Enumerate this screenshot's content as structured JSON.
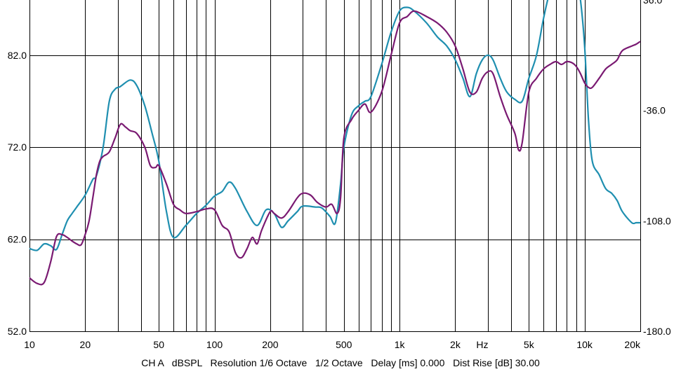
{
  "chart_data": {
    "type": "line",
    "x_scale": "log",
    "xlim": [
      10,
      20000
    ],
    "ylim_left": [
      52,
      88
    ],
    "ylim_right": [
      -180,
      36
    ],
    "grid": true,
    "x_tick_labels": [
      {
        "value": 10,
        "label": "10"
      },
      {
        "value": 20,
        "label": "20"
      },
      {
        "value": 50,
        "label": "50"
      },
      {
        "value": 100,
        "label": "100"
      },
      {
        "value": 200,
        "label": "200"
      },
      {
        "value": 500,
        "label": "500"
      },
      {
        "value": 1000,
        "label": "1k"
      },
      {
        "value": 2000,
        "label": "2k"
      },
      {
        "value": 5000,
        "label": "5k"
      },
      {
        "value": 10000,
        "label": "10k"
      },
      {
        "value": 20000,
        "label": "20k"
      }
    ],
    "x_unit_label": "Hz",
    "y_left_ticks": [
      {
        "value": 52,
        "label": "52.0"
      },
      {
        "value": 62,
        "label": "62.0"
      },
      {
        "value": 72,
        "label": "72.0"
      },
      {
        "value": 82,
        "label": "82.0"
      }
    ],
    "y_right_ticks": [
      {
        "value": -180,
        "label": "-180.0"
      },
      {
        "value": -108,
        "label": "-108.0"
      },
      {
        "value": -36,
        "label": "-36.0"
      },
      {
        "value": 36,
        "label": "36.0"
      }
    ],
    "series": [
      {
        "color": "#1f8fb0",
        "x": [
          10,
          11,
          12,
          13,
          14,
          15,
          16,
          17,
          18,
          20,
          22,
          23,
          25,
          27,
          29,
          31,
          35,
          38,
          42,
          46,
          50,
          55,
          60,
          70,
          80,
          90,
          100,
          110,
          120,
          130,
          150,
          170,
          190,
          210,
          230,
          250,
          280,
          300,
          350,
          380,
          420,
          450,
          480,
          500,
          550,
          600,
          650,
          700,
          800,
          900,
          1000,
          1100,
          1200,
          1400,
          1600,
          1800,
          2000,
          2200,
          2400,
          2600,
          2800,
          3000,
          3200,
          3500,
          3800,
          4200,
          4600,
          5000,
          5500,
          6000,
          6500,
          7000,
          7500,
          8000,
          8500,
          9000,
          9500,
          10000,
          10500,
          11000,
          12000,
          13000,
          14000,
          15000,
          16000,
          18000,
          19000,
          20000
        ],
        "values": [
          61.0,
          60.8,
          61.5,
          61.3,
          60.9,
          62.5,
          64.0,
          64.8,
          65.5,
          66.8,
          68.5,
          68.9,
          72.0,
          77.0,
          78.3,
          78.6,
          79.3,
          78.7,
          76.5,
          73.5,
          70.5,
          65.0,
          62.2,
          63.5,
          64.8,
          65.7,
          66.7,
          67.2,
          68.2,
          67.5,
          65.0,
          63.5,
          65.2,
          64.8,
          63.3,
          64.0,
          65.0,
          65.6,
          65.5,
          65.4,
          64.5,
          63.8,
          68.0,
          72.0,
          75.5,
          76.5,
          77.0,
          77.5,
          81.0,
          84.5,
          86.8,
          87.2,
          86.8,
          85.5,
          84.0,
          83.0,
          81.5,
          79.5,
          77.5,
          80.0,
          81.5,
          82.0,
          81.5,
          79.5,
          78.0,
          77.2,
          77.0,
          79.5,
          82.0,
          86.0,
          89.0,
          91.0,
          92.5,
          92.8,
          92.2,
          90.5,
          88.0,
          83.0,
          75.0,
          70.5,
          69.0,
          67.5,
          67.0,
          66.2,
          65.0,
          63.8,
          63.8,
          63.8
        ]
      },
      {
        "color": "#7a1a72",
        "x": [
          10,
          11,
          12,
          13,
          14,
          15,
          16,
          17,
          18,
          19,
          20,
          21,
          22,
          23,
          24,
          25,
          27,
          29,
          31,
          33,
          35,
          38,
          42,
          45,
          48,
          50,
          55,
          60,
          65,
          70,
          80,
          90,
          100,
          110,
          120,
          130,
          140,
          150,
          160,
          170,
          180,
          200,
          210,
          230,
          250,
          280,
          300,
          330,
          360,
          400,
          430,
          460,
          480,
          500,
          550,
          600,
          650,
          700,
          800,
          900,
          1000,
          1100,
          1200,
          1400,
          1600,
          1800,
          2000,
          2200,
          2400,
          2600,
          2800,
          3000,
          3200,
          3500,
          3800,
          4200,
          4400,
          4600,
          5000,
          5500,
          6000,
          6500,
          7000,
          7500,
          8000,
          8500,
          9000,
          9500,
          10000,
          10500,
          11000,
          12000,
          13000,
          14000,
          15000,
          16000,
          18000,
          19000,
          20000
        ],
        "values": [
          57.8,
          57.2,
          57.3,
          59.5,
          62.3,
          62.5,
          62.2,
          61.8,
          61.5,
          61.4,
          62.5,
          64.0,
          66.5,
          69.0,
          70.5,
          71.0,
          71.5,
          73.0,
          74.5,
          74.2,
          73.8,
          73.5,
          72.0,
          70.0,
          69.8,
          70.0,
          68.0,
          65.8,
          65.2,
          64.8,
          65.0,
          65.3,
          65.2,
          63.5,
          62.8,
          60.5,
          60.0,
          61.0,
          62.2,
          61.5,
          63.0,
          65.0,
          64.8,
          64.3,
          65.0,
          66.5,
          67.0,
          66.8,
          66.0,
          65.5,
          65.8,
          64.8,
          66.5,
          73.0,
          75.0,
          76.0,
          76.7,
          75.8,
          78.0,
          82.0,
          85.5,
          86.2,
          86.8,
          86.2,
          85.5,
          84.5,
          83.0,
          80.5,
          78.0,
          78.0,
          79.5,
          80.2,
          80.0,
          77.5,
          75.5,
          73.5,
          71.7,
          72.5,
          78.0,
          79.5,
          80.5,
          81.0,
          81.3,
          81.0,
          81.3,
          81.2,
          80.8,
          80.0,
          79.0,
          78.5,
          78.5,
          79.5,
          80.5,
          81.0,
          81.5,
          82.5,
          83.0,
          83.2,
          83.5
        ]
      }
    ]
  },
  "status": {
    "channel": "CH A",
    "unit": "dBSPL",
    "resolution": "Resolution 1/6 Octave",
    "smoothing": "1/2 Octave",
    "delay": "Delay [ms] 0.000",
    "dist_rise": "Dist Rise [dB] 30.00"
  }
}
